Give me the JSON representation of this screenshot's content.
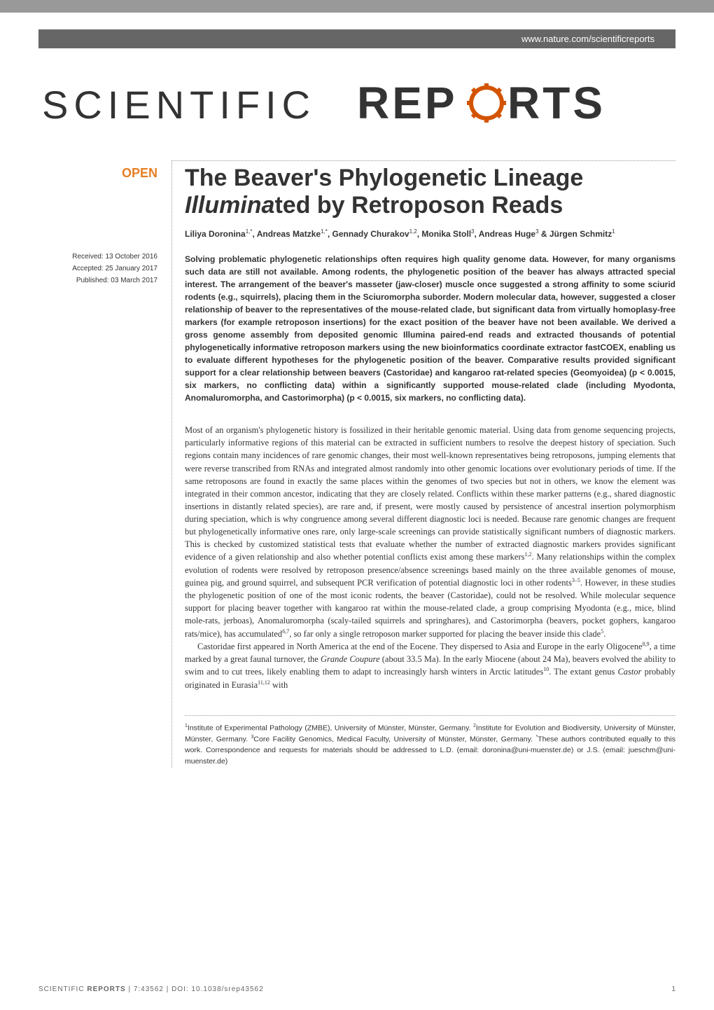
{
  "header": {
    "url": "www.nature.com/scientificreports",
    "journal_logo_text_left": "SCIENTIFIC",
    "journal_logo_text_right": "RTS",
    "open_badge": "OPEN"
  },
  "dates": {
    "received": "Received: 13 October 2016",
    "accepted": "Accepted: 25 January 2017",
    "published": "Published: 03 March 2017"
  },
  "article": {
    "title_part1": "The Beaver's Phylogenetic Lineage ",
    "title_italic": "Illumina",
    "title_part2": "ted by Retroposon Reads",
    "authors_html": "Liliya Doronina<sup>1,*</sup>, Andreas Matzke<sup>1,*</sup>, Gennady Churakov<sup>1,2</sup>, Monika Stoll<sup>3</sup>, Andreas Huge<sup>3</sup> & Jürgen Schmitz<sup>1</sup>",
    "abstract": "Solving problematic phylogenetic relationships often requires high quality genome data. However, for many organisms such data are still not available. Among rodents, the phylogenetic position of the beaver has always attracted special interest. The arrangement of the beaver's masseter (jaw-closer) muscle once suggested a strong affinity to some sciurid rodents (e.g., squirrels), placing them in the Sciuromorpha suborder. Modern molecular data, however, suggested a closer relationship of beaver to the representatives of the mouse-related clade, but significant data from virtually homoplasy-free markers (for example retroposon insertions) for the exact position of the beaver have not been available. We derived a gross genome assembly from deposited genomic Illumina paired-end reads and extracted thousands of potential phylogenetically informative retroposon markers using the new bioinformatics coordinate extractor fastCOEX, enabling us to evaluate different hypotheses for the phylogenetic position of the beaver. Comparative results provided significant support for a clear relationship between beavers (Castoridae) and kangaroo rat-related species (Geomyoidea) (p < 0.0015, six markers, no conflicting data) within a significantly supported mouse-related clade (including Myodonta, Anomaluromorpha, and Castorimorpha) (p < 0.0015, six markers, no conflicting data).",
    "body_p1": "Most of an organism's phylogenetic history is fossilized in their heritable genomic material. Using data from genome sequencing projects, particularly informative regions of this material can be extracted in sufficient numbers to resolve the deepest history of speciation. Such regions contain many incidences of rare genomic changes, their most well-known representatives being retroposons, jumping elements that were reverse transcribed from RNAs and integrated almost randomly into other genomic locations over evolutionary periods of time. If the same retroposons are found in exactly the same places within the genomes of two species but not in others, we know the element was integrated in their common ancestor, indicating that they are closely related. Conflicts within these marker patterns (e.g., shared diagnostic insertions in distantly related species), are rare and, if present, were mostly caused by persistence of ancestral insertion polymorphism during speciation, which is why congruence among several different diagnostic loci is needed. Because rare genomic changes are frequent but phylogenetically informative ones rare, only large-scale screenings can provide statistically significant numbers of diagnostic markers. This is checked by customized statistical tests that evaluate whether the number of extracted diagnostic markers provides significant evidence of a given relationship and also whether potential conflicts exist among these markers<sup>1,2</sup>. Many relationships within the complex evolution of rodents were resolved by retroposon presence/absence screenings based mainly on the three available genomes of mouse, guinea pig, and ground squirrel, and subsequent PCR verification of potential diagnostic loci in other rodents<sup>3–5</sup>. However, in these studies the phylogenetic position of one of the most iconic rodents, the beaver (Castoridae), could not be resolved. While molecular sequence support for placing beaver together with kangaroo rat within the mouse-related clade, a group comprising Myodonta (e.g., mice, blind mole-rats, jerboas), Anomaluromorpha (scaly-tailed squirrels and springhares), and Castorimorpha (beavers, pocket gophers, kangaroo rats/mice), has accumulated<sup>6,7</sup>, so far only a single retroposon marker supported for placing the beaver inside this clade<sup>5</sup>.",
    "body_p2_part1": "Castoridae first appeared in North America at the end of the Eocene. They dispersed to Asia and Europe in the early Oligocene<sup>8,9</sup>, a time marked by a great faunal turnover, the ",
    "body_p2_italic": "Grande Coupure",
    "body_p2_part2": " (about 33.5 Ma). In the early Miocene (about 24 Ma), beavers evolved the ability to swim and to cut trees, likely enabling them to adapt to increasingly harsh winters in Arctic latitudes<sup>10</sup>. The extant genus ",
    "body_p2_italic2": "Castor",
    "body_p2_part3": " probably originated in Eurasia<sup>11,12</sup> with",
    "affiliations": "<sup>1</sup>Institute of Experimental Pathology (ZMBE), University of Münster, Münster, Germany. <sup>2</sup>Institute for Evolution and Biodiversity, University of Münster, Münster, Germany. <sup>3</sup>Core Facility Genomics, Medical Faculty, University of Münster, Münster, Germany. <sup>*</sup>These authors contributed equally to this work. Correspondence and requests for materials should be addressed to L.D. (email: doronina@uni-muenster.de) or J.S. (email: jueschm@uni-muenster.de)"
  },
  "footer": {
    "citation_prefix": "SCIENTIFIC ",
    "citation_bold": "REPORTS",
    "citation_rest": " | 7:43562 | DOI: 10.1038/srep43562",
    "page_number": "1"
  },
  "colors": {
    "open_badge": "#e67e22",
    "header_bg": "#666666",
    "top_bar": "#999999",
    "text": "#333333",
    "footer_text": "#666666"
  }
}
